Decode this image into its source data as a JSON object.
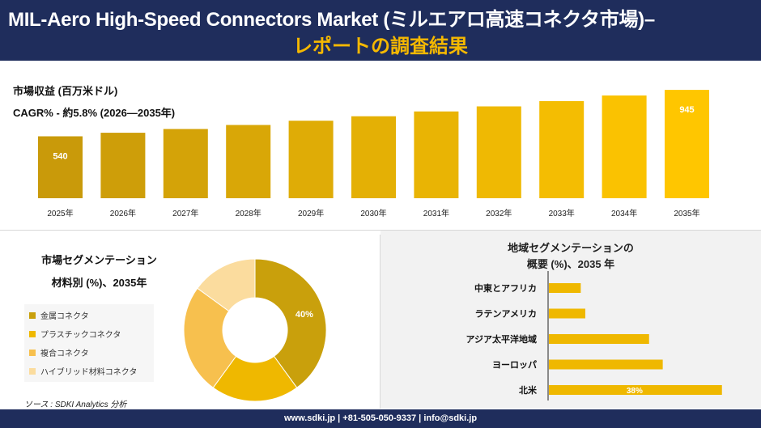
{
  "header": {
    "title_line1": "MIL-Aero High-Speed Connectors Market (ミルエアロ高速コネクタ市場)–",
    "title_line2": "レポートの調査結果"
  },
  "metrics": {
    "revenue_label": "市場収益 (百万米ドル)",
    "cagr_label": "CAGR% - 約5.8% (2026—2035年)"
  },
  "segmentation": {
    "title": "市場セグメンテーション",
    "subtitle": "材料別 (%)、2035年"
  },
  "region": {
    "title_line1": "地域セグメンテーションの",
    "title_line2": "概要 (%)、2035 年"
  },
  "source": "ソース : SDKI Analytics 分析",
  "footer": "www.sdki.jp | +81-505-050-9337 | info@sdki.jp",
  "colors": {
    "navy": "#1f2d5c",
    "accent_yellow": "#f5b800",
    "bar_start": "#c99a0a",
    "bar_end": "#ffc600"
  },
  "chart_data": [
    {
      "type": "bar",
      "categories": [
        "2025年",
        "2026年",
        "2027年",
        "2028年",
        "2029年",
        "2030年",
        "2031年",
        "2032年",
        "2033年",
        "2034年",
        "2035年"
      ],
      "values": [
        540,
        571,
        604,
        639,
        676,
        715,
        757,
        801,
        847,
        896,
        945
      ],
      "data_labels": {
        "2025年": "540",
        "2035年": "945"
      },
      "ylim": [
        0,
        1000
      ]
    },
    {
      "type": "pie",
      "donut": true,
      "categories": [
        "金属コネクタ",
        "プラスチックコネクタ",
        "複合コネクタ",
        "ハイブリッド材料コネクタ"
      ],
      "values": [
        40,
        20,
        25,
        15
      ],
      "colors": [
        "#c9a00c",
        "#efb800",
        "#f7c04e",
        "#fbdc9e"
      ],
      "data_labels": [
        "40%",
        "",
        "",
        ""
      ],
      "legend": "left"
    },
    {
      "type": "bar",
      "orientation": "horizontal",
      "categories": [
        "中東とアフリカ",
        "ラテンアメリカ",
        "アジア太平洋地域",
        "ヨーロッパ",
        "北米"
      ],
      "values": [
        7,
        8,
        22,
        25,
        38
      ],
      "data_labels": [
        "",
        "",
        "",
        "",
        "38%"
      ],
      "xlim": [
        0,
        40
      ]
    }
  ]
}
